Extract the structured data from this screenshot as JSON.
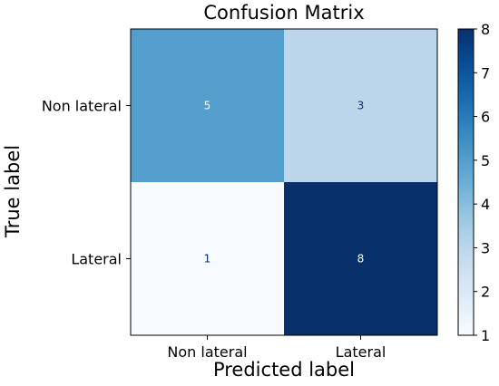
{
  "chart_data": {
    "type": "heatmap",
    "title": "Confusion Matrix",
    "xlabel": "Predicted label",
    "ylabel": "True label",
    "x_categories": [
      "Non lateral",
      "Lateral"
    ],
    "y_categories": [
      "Non lateral",
      "Lateral"
    ],
    "values": [
      [
        5,
        3
      ],
      [
        1,
        8
      ]
    ],
    "colormap": "Blues",
    "color_range": [
      1,
      8
    ],
    "colorbar_ticks": [
      1,
      2,
      3,
      4,
      5,
      6,
      7,
      8
    ],
    "grid": false
  }
}
